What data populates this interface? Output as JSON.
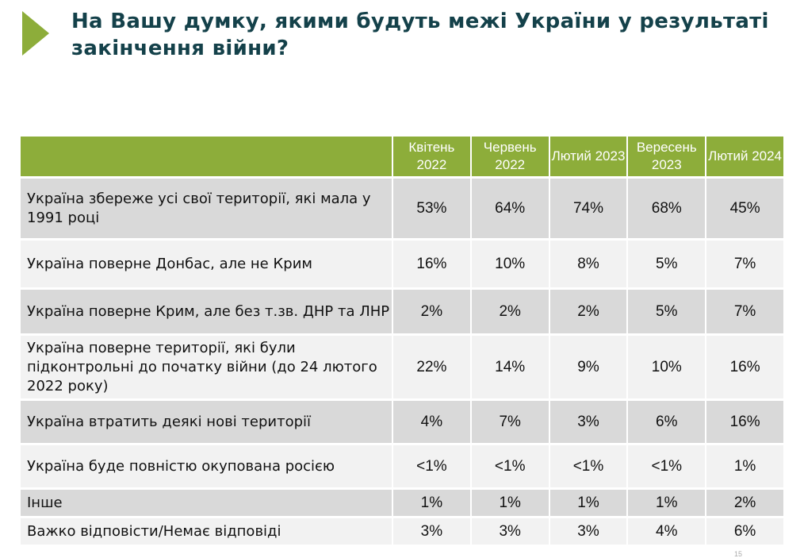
{
  "title": "На Вашу думку, якими будуть межі України у результаті закінчення війни?",
  "accent_color": "#8dad3a",
  "title_color": "#14414a",
  "columns": [
    "Квітень 2022",
    "Червень 2022",
    "Лютий 2023",
    "Вересень 2023",
    "Лютий 2024"
  ],
  "rows": [
    {
      "label": "Україна збереже усі свої території, які мала у 1991 році",
      "values": [
        "53%",
        "64%",
        "74%",
        "68%",
        "45%"
      ]
    },
    {
      "label": "Україна поверне Донбас, але не Крим",
      "values": [
        "16%",
        "10%",
        "8%",
        "5%",
        "7%"
      ]
    },
    {
      "label": "Україна поверне Крим, але без т.зв. ДНР та ЛНР",
      "values": [
        "2%",
        "2%",
        "2%",
        "5%",
        "7%"
      ]
    },
    {
      "label": "Україна поверне території, які були підконтрольні до початку війни (до 24 лютого 2022 року)",
      "values": [
        "22%",
        "14%",
        "9%",
        "10%",
        "16%"
      ]
    },
    {
      "label": "Україна втратить деякі нові території",
      "values": [
        "4%",
        "7%",
        "3%",
        "6%",
        "16%"
      ]
    },
    {
      "label": "Україна буде повністю окупована росією",
      "values": [
        "<1%",
        "<1%",
        "<1%",
        "<1%",
        "1%"
      ]
    },
    {
      "label": "Інше",
      "values": [
        "1%",
        "1%",
        "1%",
        "1%",
        "2%"
      ]
    },
    {
      "label": "Важко відповісти/Немає відповіді",
      "values": [
        "3%",
        "3%",
        "3%",
        "4%",
        "6%"
      ]
    }
  ],
  "page_number": "15"
}
